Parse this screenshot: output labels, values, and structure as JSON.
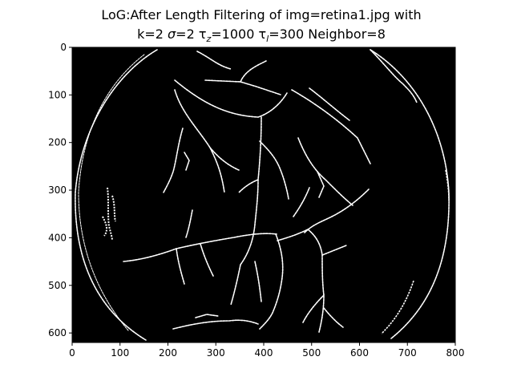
{
  "figure": {
    "title_line1": "LoG:After Length Filtering of img=retina1.jpg with",
    "title_line2_parts": {
      "k": "k=2 ",
      "sigma_symbol": "σ",
      "sigma_rest": "=2 ",
      "tau": "τ",
      "tau_z_sub": "z",
      "tau_z_rest": "=1000 ",
      "tau_l_sub": "l",
      "tau_l_rest": "=300 Neighbor=8"
    },
    "background_color": "#ffffff",
    "image_background_color": "#000000",
    "vessel_color": "#ffffff"
  },
  "chart_data": {
    "type": "image",
    "title": "LoG:After Length Filtering of img=retina1.jpg with k=2 σ=2 τz=1000 τl=300 Neighbor=8",
    "xlabel": "",
    "ylabel": "",
    "xlim": [
      0,
      800
    ],
    "ylim": [
      620,
      0
    ],
    "x_ticks": [
      0,
      100,
      200,
      300,
      400,
      500,
      600,
      700,
      800
    ],
    "y_ticks": [
      0,
      100,
      200,
      300,
      400,
      500,
      600
    ],
    "x_tick_labels": [
      "0",
      "100",
      "200",
      "300",
      "400",
      "500",
      "600",
      "700",
      "800"
    ],
    "y_tick_labels": [
      "0",
      "100",
      "200",
      "300",
      "400",
      "500",
      "600"
    ],
    "content": "binary vessel segmentation mask of a retina (white vessel pixels on black background)"
  }
}
